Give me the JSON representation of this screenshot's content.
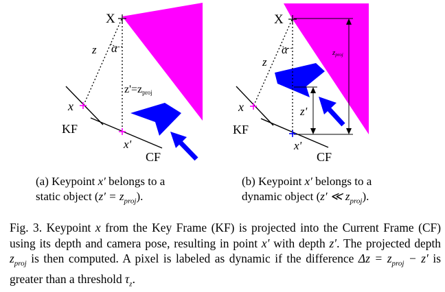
{
  "panel_a": {
    "label_X": "X",
    "label_z": "z",
    "label_alpha": "α",
    "label_zprime_eq": "z'=z",
    "label_zprime_sub": "proj",
    "label_x": "x",
    "label_xprime": "x'",
    "label_KF": "KF",
    "label_CF": "CF",
    "caption_line1_prefix": "(a)  Keypoint ",
    "caption_line1_var": "x′",
    "caption_line1_suffix": " belongs to a",
    "caption_line2_prefix": "static object (",
    "caption_line2_math": "z′ = z",
    "caption_line2_sub": "proj",
    "caption_line2_suffix": ")."
  },
  "panel_b": {
    "label_X": "X",
    "label_z": "z",
    "label_alpha": "α",
    "label_zproj": "z",
    "label_zproj_sub": "proj",
    "label_zprime": "z'",
    "label_x": "x",
    "label_xprime": "x'",
    "label_KF": "KF",
    "label_CF": "CF",
    "caption_line1_prefix": "(b)  Keypoint ",
    "caption_line1_var": "x′",
    "caption_line1_suffix": " belongs to a",
    "caption_line2_prefix": "dynamic object (",
    "caption_line2_math": "z′ ≪ z",
    "caption_line2_sub": "proj",
    "caption_line2_suffix": ")."
  },
  "caption": {
    "fig_label": "Fig. 3.",
    "text_1": "   Keypoint ",
    "var_x": "x",
    "text_2": " from the Key Frame (KF) is projected into the Current Frame (CF) using its depth and camera pose, resulting in point ",
    "var_xprime": "x′",
    "text_3": " with depth ",
    "var_zprime": "z′",
    "text_4": ". The projected depth ",
    "var_zproj": "z",
    "var_zproj_sub": "proj",
    "text_5": " is then computed. A pixel is labeled as dynamic if the difference ",
    "var_delta": "Δz = z",
    "var_delta_sub": "proj",
    "var_delta_end": " − z′",
    "text_6": " is greater than a threshold ",
    "var_tau": "τ",
    "var_tau_sub": "z",
    "text_7": "."
  },
  "colors": {
    "object": "#ff00ff",
    "dynamic_object": "#0000ff",
    "arrow": "#0000ff",
    "keypoint_a": "#ff00ff",
    "keypoint_b": "#0000ff"
  }
}
